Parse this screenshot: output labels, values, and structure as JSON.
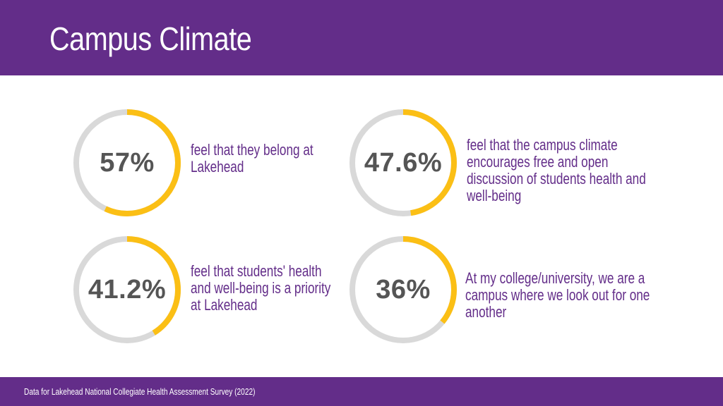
{
  "title": "Campus Climate",
  "colors": {
    "accent": "#fbbf15",
    "track": "#d9d9d9",
    "brand": "#632d89"
  },
  "chart_data": {
    "type": "donut",
    "items": [
      {
        "label": "57%",
        "value": 57,
        "description": "feel that they belong at Lakehead"
      },
      {
        "label": "47.6%",
        "value": 47.6,
        "description": "feel that the campus climate encourages free and open discussion of students health and well-being"
      },
      {
        "label": "41.2%",
        "value": 41.2,
        "description": "feel that students' health and well-being is a priority at Lakehead"
      },
      {
        "label": "36%",
        "value": 36,
        "description": "At my college/university, we are a campus where we look out for one another"
      }
    ]
  },
  "footer": "Data for Lakehead National Collegiate Health Assessment Survey (2022)"
}
